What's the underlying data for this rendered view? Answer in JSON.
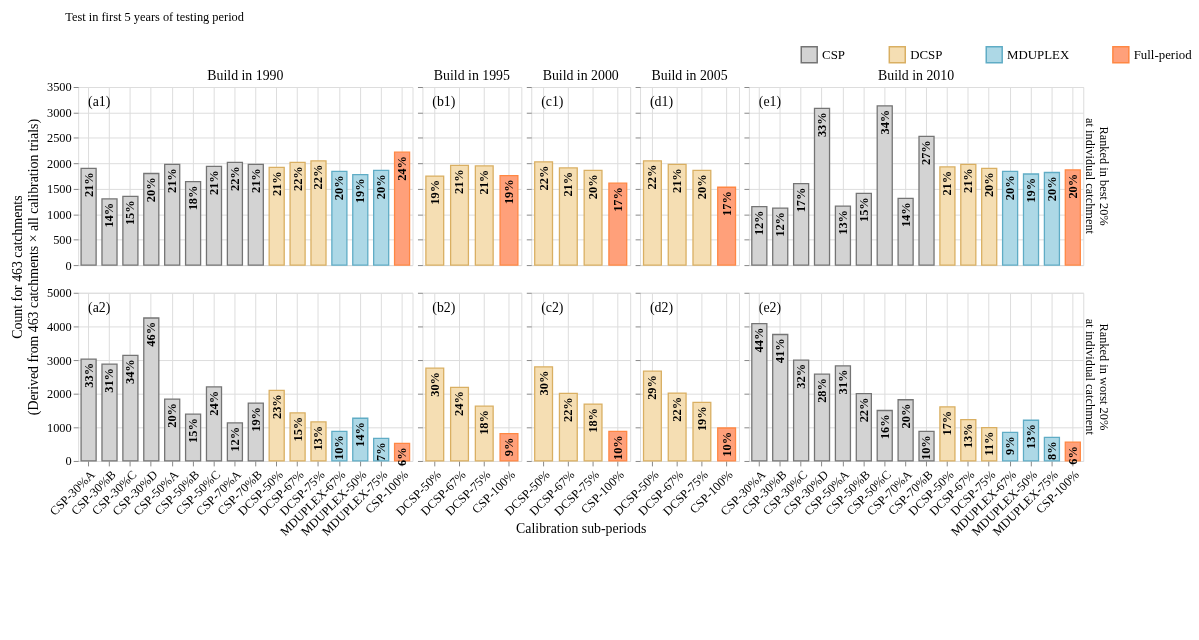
{
  "chart_data": [
    {
      "type": "bar",
      "title": "Build in 1990",
      "subtitle": "Test in first 5 years of testing period",
      "ylabel": "Count for 463 catchments\n(Derived from 463 catchments × all calibration trials)",
      "legend": "top right",
      "grid": true,
      "tick_labels": "y",
      "ylim": [
        0,
        3500
      ],
      "yticks": [
        0,
        500,
        1000,
        1500,
        2000,
        2500,
        3000,
        3500
      ],
      "categories": [
        "CSP-30%A",
        "CSP-30%B",
        "CSP-30%C",
        "CSP-30%D",
        "CSP-50%A",
        "CSP-50%B",
        "CSP-50%C",
        "CSP-70%A",
        "CSP-70%B",
        "DCSP-50%",
        "DCSP-67%",
        "DCSP-75%",
        "MDUPLEX-67%",
        "MDUPLEX-50%",
        "MDUPLEX-75%",
        "CSP-100%"
      ],
      "series": [
        {
          "name": "CSP",
          "color": "#d3d3d3",
          "values": [
            1900,
            1300,
            1350,
            1800,
            1980,
            1640,
            1940,
            2020,
            1980,
            null,
            null,
            null,
            null,
            null,
            null,
            null
          ]
        },
        {
          "name": "DCSP",
          "color": "#f5deb3",
          "values": [
            null,
            null,
            null,
            null,
            null,
            null,
            null,
            null,
            null,
            1920,
            2020,
            2050,
            null,
            null,
            null,
            null
          ]
        },
        {
          "name": "MDUPLEX",
          "color": "#add8e6",
          "values": [
            null,
            null,
            null,
            null,
            null,
            null,
            null,
            null,
            null,
            null,
            null,
            null,
            1840,
            1780,
            1860,
            null
          ]
        },
        {
          "name": "Full-period",
          "color": "#ffa07a",
          "values": [
            null,
            null,
            null,
            null,
            null,
            null,
            null,
            null,
            null,
            null,
            null,
            null,
            null,
            null,
            null,
            2220
          ]
        }
      ],
      "annotations": [
        "(a1)",
        {
          "text": "21%",
          "x": "CSP-30%A",
          "y": 1900
        },
        {
          "text": "14%",
          "x": "CSP-30%B",
          "y": 1300
        },
        {
          "text": "15%",
          "x": "CSP-30%C",
          "y": 1350
        },
        {
          "text": "20%",
          "x": "CSP-30%D",
          "y": 1800
        },
        {
          "text": "21%",
          "x": "CSP-50%A",
          "y": 1980
        },
        {
          "text": "18%",
          "x": "CSP-50%B",
          "y": 1640
        },
        {
          "text": "21%",
          "x": "CSP-50%C",
          "y": 1940
        },
        {
          "text": "22%",
          "x": "CSP-70%A",
          "y": 2020
        },
        {
          "text": "21%",
          "x": "CSP-70%B",
          "y": 1980
        },
        {
          "text": "21%",
          "x": "DCSP-50%",
          "y": 1920
        },
        {
          "text": "22%",
          "x": "DCSP-67%",
          "y": 2020
        },
        {
          "text": "22%",
          "x": "DCSP-75%",
          "y": 2050
        },
        {
          "text": "20%",
          "x": "MDUPLEX-67%",
          "y": 1840
        },
        {
          "text": "19%",
          "x": "MDUPLEX-50%",
          "y": 1780
        },
        {
          "text": "20%",
          "x": "MDUPLEX-75%",
          "y": 1860
        },
        {
          "text": "24%",
          "x": "CSP-100%",
          "y": 2220
        }
      ]
    },
    {
      "type": "bar",
      "title": "Build in 1995",
      "grid": true,
      "tick_labels": false,
      "ylim": [
        0,
        3500
      ],
      "yticks": [
        0,
        500,
        1000,
        1500,
        2000,
        2500,
        3000,
        3500
      ],
      "categories": [
        "DCSP-50%",
        "DCSP-67%",
        "DCSP-75%",
        "CSP-100%"
      ],
      "series": [
        {
          "name": "DCSP",
          "color": "#f5deb3",
          "values": [
            1750,
            1960,
            1950,
            null
          ]
        },
        {
          "name": "Full-period",
          "color": "#ffa07a",
          "values": [
            null,
            null,
            null,
            1760
          ]
        }
      ],
      "annotations": [
        "(b1)",
        {
          "text": "19%",
          "x": "DCSP-50%",
          "y": 1750
        },
        {
          "text": "21%",
          "x": "DCSP-67%",
          "y": 1960
        },
        {
          "text": "21%",
          "x": "DCSP-75%",
          "y": 1950
        },
        {
          "text": "19%",
          "x": "CSP-100%",
          "y": 1760
        }
      ]
    },
    {
      "type": "bar",
      "title": "Build in 2000",
      "grid": true,
      "tick_labels": false,
      "ylim": [
        0,
        3500
      ],
      "yticks": [
        0,
        500,
        1000,
        1500,
        2000,
        2500,
        3000,
        3500
      ],
      "categories": [
        "DCSP-50%",
        "DCSP-67%",
        "DCSP-75%",
        "CSP-100%"
      ],
      "series": [
        {
          "name": "DCSP",
          "color": "#f5deb3",
          "values": [
            2030,
            1910,
            1860,
            null
          ]
        },
        {
          "name": "Full-period",
          "color": "#ffa07a",
          "values": [
            null,
            null,
            null,
            1610
          ]
        }
      ],
      "annotations": [
        "(c1)",
        {
          "text": "22%",
          "x": "DCSP-50%",
          "y": 2030
        },
        {
          "text": "21%",
          "x": "DCSP-67%",
          "y": 1910
        },
        {
          "text": "20%",
          "x": "DCSP-75%",
          "y": 1860
        },
        {
          "text": "17%",
          "x": "CSP-100%",
          "y": 1610
        }
      ]
    },
    {
      "type": "bar",
      "title": "Build in 2005",
      "grid": true,
      "tick_labels": false,
      "ylim": [
        0,
        3500
      ],
      "yticks": [
        0,
        500,
        1000,
        1500,
        2000,
        2500,
        3000,
        3500
      ],
      "categories": [
        "DCSP-50%",
        "DCSP-67%",
        "DCSP-75%",
        "CSP-100%"
      ],
      "series": [
        {
          "name": "DCSP",
          "color": "#f5deb3",
          "values": [
            2050,
            1980,
            1860,
            null
          ]
        },
        {
          "name": "Full-period",
          "color": "#ffa07a",
          "values": [
            null,
            null,
            null,
            1530
          ]
        }
      ],
      "annotations": [
        "(d1)",
        {
          "text": "22%",
          "x": "DCSP-50%",
          "y": 2050
        },
        {
          "text": "21%",
          "x": "DCSP-67%",
          "y": 1980
        },
        {
          "text": "20%",
          "x": "DCSP-75%",
          "y": 1860
        },
        {
          "text": "17%",
          "x": "CSP-100%",
          "y": 1530
        }
      ]
    },
    {
      "type": "bar",
      "title": "Build in 2010",
      "y2label": "Ranked in best 20%\nat individual catchment",
      "grid": true,
      "tick_labels": false,
      "ylim": [
        0,
        3500
      ],
      "yticks": [
        0,
        500,
        1000,
        1500,
        2000,
        2500,
        3000,
        3500
      ],
      "categories": [
        "CSP-30%A",
        "CSP-30%B",
        "CSP-30%C",
        "CSP-30%D",
        "CSP-50%A",
        "CSP-50%B",
        "CSP-50%C",
        "CSP-70%A",
        "CSP-70%B",
        "DCSP-50%",
        "DCSP-67%",
        "DCSP-75%",
        "MDUPLEX-67%",
        "MDUPLEX-50%",
        "MDUPLEX-75%",
        "CSP-100%"
      ],
      "series": [
        {
          "name": "CSP",
          "color": "#d3d3d3",
          "values": [
            1150,
            1120,
            1600,
            3080,
            1160,
            1410,
            3130,
            1310,
            2530,
            null,
            null,
            null,
            null,
            null,
            null,
            null
          ]
        },
        {
          "name": "DCSP",
          "color": "#f5deb3",
          "values": [
            null,
            null,
            null,
            null,
            null,
            null,
            null,
            null,
            null,
            1930,
            1980,
            1900,
            null,
            null,
            null,
            null
          ]
        },
        {
          "name": "MDUPLEX",
          "color": "#add8e6",
          "values": [
            null,
            null,
            null,
            null,
            null,
            null,
            null,
            null,
            null,
            null,
            null,
            null,
            1840,
            1790,
            1820,
            null
          ]
        },
        {
          "name": "Full-period",
          "color": "#ffa07a",
          "values": [
            null,
            null,
            null,
            null,
            null,
            null,
            null,
            null,
            null,
            null,
            null,
            null,
            null,
            null,
            null,
            1870
          ]
        }
      ],
      "annotations": [
        "(e1)",
        {
          "text": "12%",
          "x": "CSP-30%A",
          "y": 1150
        },
        {
          "text": "12%",
          "x": "CSP-30%B",
          "y": 1120
        },
        {
          "text": "17%",
          "x": "CSP-30%C",
          "y": 1600
        },
        {
          "text": "33%",
          "x": "CSP-30%D",
          "y": 3080
        },
        {
          "text": "13%",
          "x": "CSP-50%A",
          "y": 1160
        },
        {
          "text": "15%",
          "x": "CSP-50%B",
          "y": 1410
        },
        {
          "text": "34%",
          "x": "CSP-50%C",
          "y": 3130
        },
        {
          "text": "14%",
          "x": "CSP-70%A",
          "y": 1310
        },
        {
          "text": "27%",
          "x": "CSP-70%B",
          "y": 2530
        },
        {
          "text": "21%",
          "x": "DCSP-50%",
          "y": 1930
        },
        {
          "text": "21%",
          "x": "DCSP-67%",
          "y": 1980
        },
        {
          "text": "20%",
          "x": "DCSP-75%",
          "y": 1900
        },
        {
          "text": "20%",
          "x": "MDUPLEX-67%",
          "y": 1840
        },
        {
          "text": "19%",
          "x": "MDUPLEX-50%",
          "y": 1790
        },
        {
          "text": "20%",
          "x": "MDUPLEX-75%",
          "y": 1820
        },
        {
          "text": "20%",
          "x": "CSP-100%",
          "y": 1870
        }
      ]
    },
    {
      "type": "bar",
      "grid": true,
      "ylim": [
        0,
        5000
      ],
      "yticks": [
        0,
        1000,
        2000,
        3000,
        4000,
        5000
      ],
      "categories": [
        "CSP-30%A",
        "CSP-30%B",
        "CSP-30%C",
        "CSP-30%D",
        "CSP-50%A",
        "CSP-50%B",
        "CSP-50%C",
        "CSP-70%A",
        "CSP-70%B",
        "DCSP-50%",
        "DCSP-67%",
        "DCSP-75%",
        "MDUPLEX-67%",
        "MDUPLEX-50%",
        "MDUPLEX-75%",
        "CSP-100%"
      ],
      "series": [
        {
          "name": "CSP",
          "color": "#d3d3d3",
          "values": [
            3030,
            2880,
            3140,
            4250,
            1840,
            1390,
            2200,
            1130,
            1720,
            null,
            null,
            null,
            null,
            null,
            null,
            null
          ]
        },
        {
          "name": "DCSP",
          "color": "#f5deb3",
          "values": [
            null,
            null,
            null,
            null,
            null,
            null,
            null,
            null,
            null,
            2100,
            1430,
            1160,
            null,
            null,
            null,
            null
          ]
        },
        {
          "name": "MDUPLEX",
          "color": "#add8e6",
          "values": [
            null,
            null,
            null,
            null,
            null,
            null,
            null,
            null,
            null,
            null,
            null,
            null,
            880,
            1270,
            670,
            null
          ]
        },
        {
          "name": "Full-period",
          "color": "#ffa07a",
          "values": [
            null,
            null,
            null,
            null,
            null,
            null,
            null,
            null,
            null,
            null,
            null,
            null,
            null,
            null,
            null,
            520
          ]
        }
      ],
      "annotations": [
        "(a2)",
        {
          "text": "33%",
          "x": "CSP-30%A",
          "y": 3030
        },
        {
          "text": "31%",
          "x": "CSP-30%B",
          "y": 2880
        },
        {
          "text": "34%",
          "x": "CSP-30%C",
          "y": 3140
        },
        {
          "text": "46%",
          "x": "CSP-30%D",
          "y": 4250
        },
        {
          "text": "20%",
          "x": "CSP-50%A",
          "y": 1840
        },
        {
          "text": "15%",
          "x": "CSP-50%B",
          "y": 1390
        },
        {
          "text": "24%",
          "x": "CSP-50%C",
          "y": 2200
        },
        {
          "text": "12%",
          "x": "CSP-70%A",
          "y": 1130
        },
        {
          "text": "19%",
          "x": "CSP-70%B",
          "y": 1720
        },
        {
          "text": "23%",
          "x": "DCSP-50%",
          "y": 2100
        },
        {
          "text": "15%",
          "x": "DCSP-67%",
          "y": 1430
        },
        {
          "text": "13%",
          "x": "DCSP-75%",
          "y": 1160
        },
        {
          "text": "10%",
          "x": "MDUPLEX-67%",
          "y": 880
        },
        {
          "text": "14%",
          "x": "MDUPLEX-50%",
          "y": 1270
        },
        {
          "text": "7%",
          "x": "MDUPLEX-75%",
          "y": 670
        },
        {
          "text": "6%",
          "x": "CSP-100%",
          "y": 520
        }
      ]
    },
    {
      "type": "bar",
      "grid": true,
      "tick_labels": "x",
      "ylim": [
        0,
        5000
      ],
      "yticks": [
        0,
        1000,
        2000,
        3000,
        4000,
        5000
      ],
      "categories": [
        "DCSP-50%",
        "DCSP-67%",
        "DCSP-75%",
        "CSP-100%"
      ],
      "series": [
        {
          "name": "DCSP",
          "color": "#f5deb3",
          "values": [
            2760,
            2190,
            1630,
            null
          ]
        },
        {
          "name": "Full-period",
          "color": "#ffa07a",
          "values": [
            null,
            null,
            null,
            810
          ]
        }
      ],
      "annotations": [
        "(b2)",
        {
          "text": "30%",
          "x": "DCSP-50%",
          "y": 2760
        },
        {
          "text": "24%",
          "x": "DCSP-67%",
          "y": 2190
        },
        {
          "text": "18%",
          "x": "DCSP-75%",
          "y": 1630
        },
        {
          "text": "9%",
          "x": "CSP-100%",
          "y": 810
        }
      ]
    },
    {
      "type": "bar",
      "xlabel": "Calibration sub-periods",
      "grid": true,
      "tick_labels": "x",
      "ylim": [
        0,
        5000
      ],
      "yticks": [
        0,
        1000,
        2000,
        3000,
        4000,
        5000
      ],
      "categories": [
        "DCSP-50%",
        "DCSP-67%",
        "DCSP-75%",
        "CSP-100%"
      ],
      "series": [
        {
          "name": "DCSP",
          "color": "#f5deb3",
          "values": [
            2800,
            2010,
            1690,
            null
          ]
        },
        {
          "name": "Full-period",
          "color": "#ffa07a",
          "values": [
            null,
            null,
            null,
            880
          ]
        }
      ],
      "annotations": [
        "(c2)",
        {
          "text": "30%",
          "x": "DCSP-50%",
          "y": 2800
        },
        {
          "text": "22%",
          "x": "DCSP-67%",
          "y": 2010
        },
        {
          "text": "18%",
          "x": "DCSP-75%",
          "y": 1690
        },
        {
          "text": "10%",
          "x": "CSP-100%",
          "y": 880
        }
      ]
    },
    {
      "type": "bar",
      "grid": true,
      "tick_labels": "x",
      "ylim": [
        0,
        5000
      ],
      "yticks": [
        0,
        1000,
        2000,
        3000,
        4000,
        5000
      ],
      "categories": [
        "DCSP-50%",
        "DCSP-67%",
        "DCSP-75%",
        "CSP-100%"
      ],
      "series": [
        {
          "name": "DCSP",
          "color": "#f5deb3",
          "values": [
            2670,
            2020,
            1740,
            null
          ]
        },
        {
          "name": "Full-period",
          "color": "#ffa07a",
          "values": [
            null,
            null,
            null,
            980
          ]
        }
      ],
      "annotations": [
        "(d2)",
        {
          "text": "29%",
          "x": "DCSP-50%",
          "y": 2670
        },
        {
          "text": "22%",
          "x": "DCSP-67%",
          "y": 2020
        },
        {
          "text": "19%",
          "x": "DCSP-75%",
          "y": 1740
        },
        {
          "text": "10%",
          "x": "CSP-100%",
          "y": 980
        }
      ]
    },
    {
      "type": "bar",
      "y2label": "Ranked in worst 20%\nat individual catchment",
      "grid": true,
      "tick_labels": "x",
      "ylim": [
        0,
        5000
      ],
      "yticks": [
        0,
        1000,
        2000,
        3000,
        4000,
        5000
      ],
      "categories": [
        "CSP-30%A",
        "CSP-30%B",
        "CSP-30%C",
        "CSP-30%D",
        "CSP-50%A",
        "CSP-50%B",
        "CSP-50%C",
        "CSP-70%A",
        "CSP-70%B",
        "DCSP-50%",
        "DCSP-67%",
        "DCSP-75%",
        "MDUPLEX-67%",
        "MDUPLEX-50%",
        "MDUPLEX-75%",
        "CSP-100%"
      ],
      "series": [
        {
          "name": "CSP",
          "color": "#d3d3d3",
          "values": [
            4080,
            3760,
            3000,
            2580,
            2830,
            2000,
            1500,
            1820,
            880,
            null,
            null,
            null,
            null,
            null,
            null,
            null
          ]
        },
        {
          "name": "DCSP",
          "color": "#f5deb3",
          "values": [
            null,
            null,
            null,
            null,
            null,
            null,
            null,
            null,
            null,
            1610,
            1230,
            990,
            null,
            null,
            null,
            null
          ]
        },
        {
          "name": "MDUPLEX",
          "color": "#add8e6",
          "values": [
            null,
            null,
            null,
            null,
            null,
            null,
            null,
            null,
            null,
            null,
            null,
            null,
            850,
            1210,
            700,
            null
          ]
        },
        {
          "name": "Full-period",
          "color": "#ffa07a",
          "values": [
            null,
            null,
            null,
            null,
            null,
            null,
            null,
            null,
            null,
            null,
            null,
            null,
            null,
            null,
            null,
            560
          ]
        }
      ],
      "annotations": [
        "(e2)",
        {
          "text": "44%",
          "x": "CSP-30%A",
          "y": 4080
        },
        {
          "text": "41%",
          "x": "CSP-30%B",
          "y": 3760
        },
        {
          "text": "32%",
          "x": "CSP-30%C",
          "y": 3000
        },
        {
          "text": "28%",
          "x": "CSP-30%D",
          "y": 2580
        },
        {
          "text": "31%",
          "x": "CSP-50%A",
          "y": 2830
        },
        {
          "text": "22%",
          "x": "CSP-50%B",
          "y": 2000
        },
        {
          "text": "16%",
          "x": "CSP-50%C",
          "y": 1500
        },
        {
          "text": "20%",
          "x": "CSP-70%A",
          "y": 1820
        },
        {
          "text": "10%",
          "x": "CSP-70%B",
          "y": 880
        },
        {
          "text": "17%",
          "x": "DCSP-50%",
          "y": 1610
        },
        {
          "text": "13%",
          "x": "DCSP-67%",
          "y": 1230
        },
        {
          "text": "11%",
          "x": "DCSP-75%",
          "y": 990
        },
        {
          "text": "9%",
          "x": "MDUPLEX-67%",
          "y": 850
        },
        {
          "text": "13%",
          "x": "MDUPLEX-50%",
          "y": 1210
        },
        {
          "text": "8%",
          "x": "MDUPLEX-75%",
          "y": 700
        },
        {
          "text": "6%",
          "x": "CSP-100%",
          "y": 560
        }
      ]
    }
  ]
}
